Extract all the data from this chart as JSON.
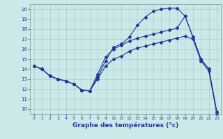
{
  "xlabel": "Graphe des températures (°c)",
  "bg_color": "#cce8e8",
  "line_color": "#1a3a9a",
  "grid_color": "#aacccc",
  "xlim": [
    -0.5,
    23.5
  ],
  "ylim": [
    9.5,
    20.5
  ],
  "xticks": [
    0,
    1,
    2,
    3,
    4,
    5,
    6,
    7,
    8,
    9,
    10,
    11,
    12,
    13,
    14,
    15,
    16,
    17,
    18,
    19,
    20,
    21,
    22,
    23
  ],
  "yticks": [
    10,
    11,
    12,
    13,
    14,
    15,
    16,
    17,
    18,
    19,
    20
  ],
  "top_x": [
    0,
    1,
    2,
    3,
    4,
    5,
    6,
    7,
    8,
    9,
    10,
    11,
    12,
    13,
    14,
    15,
    16,
    17,
    18,
    19,
    20,
    21,
    22,
    23
  ],
  "top_y": [
    14.3,
    14.0,
    13.3,
    13.0,
    12.8,
    12.5,
    11.9,
    11.8,
    13.2,
    14.8,
    16.2,
    16.5,
    17.2,
    18.4,
    19.2,
    19.8,
    20.0,
    20.1,
    20.1,
    19.3,
    17.2,
    15.0,
    14.0,
    9.7
  ],
  "mid_x": [
    0,
    1,
    2,
    3,
    4,
    5,
    6,
    7,
    8,
    9,
    10,
    11,
    12,
    13,
    14,
    15,
    16,
    17,
    18,
    19,
    20,
    21,
    22,
    23
  ],
  "mid_y": [
    14.3,
    14.0,
    13.3,
    13.0,
    12.8,
    12.5,
    11.9,
    11.8,
    13.5,
    15.2,
    16.0,
    16.4,
    16.8,
    17.1,
    17.3,
    17.5,
    17.7,
    17.9,
    18.1,
    19.3,
    17.2,
    15.0,
    14.0,
    9.7
  ],
  "bot_x": [
    0,
    1,
    2,
    3,
    4,
    5,
    6,
    7,
    8,
    9,
    10,
    11,
    12,
    13,
    14,
    15,
    16,
    17,
    18,
    19,
    20,
    21,
    22,
    23
  ],
  "bot_y": [
    14.3,
    14.0,
    13.3,
    13.0,
    12.8,
    12.5,
    11.9,
    11.8,
    13.0,
    14.3,
    15.0,
    15.3,
    15.8,
    16.1,
    16.3,
    16.5,
    16.7,
    16.9,
    17.1,
    17.3,
    17.0,
    14.8,
    13.8,
    9.5
  ]
}
